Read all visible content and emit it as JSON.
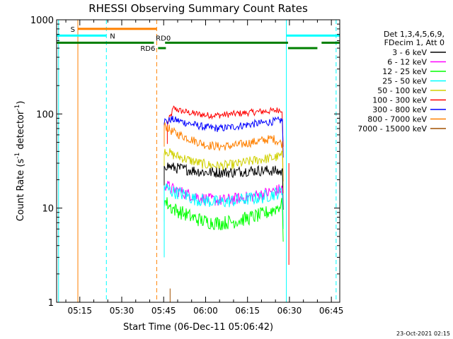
{
  "chart_data": {
    "type": "line",
    "title": "RHESSI Observing Summary Count Rates",
    "xlabel": "Start Time (06-Dec-11 05:06:42)",
    "ylabel_main": "Count Rate (s",
    "ylabel_sup1": "-1",
    "ylabel_mid": " detector",
    "ylabel_sup2": "-1",
    "ylabel_end": ")",
    "y_scale": "log",
    "ylim": [
      1,
      1000
    ],
    "xlim_minutes": [
      306.7,
      408
    ],
    "x_ticks": [
      {
        "label": "05:15",
        "min": 315
      },
      {
        "label": "05:30",
        "min": 330
      },
      {
        "label": "05:45",
        "min": 345
      },
      {
        "label": "06:00",
        "min": 360
      },
      {
        "label": "06:15",
        "min": 375
      },
      {
        "label": "06:30",
        "min": 390
      },
      {
        "label": "06:45",
        "min": 405
      }
    ],
    "y_ticks": [
      {
        "label": "1",
        "value": 1
      },
      {
        "label": "10",
        "value": 10
      },
      {
        "label": "100",
        "value": 100
      },
      {
        "label": "1000",
        "value": 1000
      }
    ],
    "legend": {
      "placement": "right",
      "header": [
        "Det 1,3,4,5,6,9,",
        "FDecim 1, Att 0"
      ],
      "entries": [
        {
          "label": "3 - 6 keV",
          "color": "#000000"
        },
        {
          "label": "6 - 12 keV",
          "color": "#ff00ff"
        },
        {
          "label": "12 - 25 keV",
          "color": "#00ff00"
        },
        {
          "label": "25 - 50 keV",
          "color": "#00ffff"
        },
        {
          "label": "50 - 100 keV",
          "color": "#d0d000"
        },
        {
          "label": "100 - 300 keV",
          "color": "#ff0000"
        },
        {
          "label": "300 - 800 keV",
          "color": "#0000ff"
        },
        {
          "label": "800 - 7000 keV",
          "color": "#ff8000"
        },
        {
          "label": "7000 - 15000 keV",
          "color": "#a05000"
        }
      ]
    },
    "series": [
      {
        "color": "#ff0000",
        "points": [
          [
            346.3,
            80
          ],
          [
            347.5,
            95
          ],
          [
            348.5,
            115
          ],
          [
            351,
            108
          ],
          [
            355,
            102
          ],
          [
            360,
            97
          ],
          [
            365,
            97
          ],
          [
            370,
            100
          ],
          [
            375,
            103
          ],
          [
            380,
            106
          ],
          [
            384,
            108
          ],
          [
            387.5,
            112
          ]
        ]
      },
      {
        "color": "#0000ff",
        "points": [
          [
            345.2,
            85
          ],
          [
            346.3,
            82
          ],
          [
            347.5,
            88
          ],
          [
            350,
            85
          ],
          [
            355,
            78
          ],
          [
            360,
            72
          ],
          [
            365,
            70
          ],
          [
            370,
            73
          ],
          [
            375,
            77
          ],
          [
            380,
            80
          ],
          [
            384,
            83
          ],
          [
            387.5,
            86
          ]
        ]
      },
      {
        "color": "#ff8000",
        "points": [
          [
            345.2,
            75
          ],
          [
            346.3,
            72
          ],
          [
            348,
            65
          ],
          [
            352,
            58
          ],
          [
            356,
            52
          ],
          [
            360,
            47
          ],
          [
            365,
            45
          ],
          [
            370,
            46
          ],
          [
            375,
            49
          ],
          [
            380,
            52
          ],
          [
            384,
            55
          ],
          [
            387.5,
            48
          ]
        ]
      },
      {
        "color": "#d0d000",
        "points": [
          [
            345.2,
            42
          ],
          [
            346.3,
            40
          ],
          [
            348,
            37
          ],
          [
            352,
            34
          ],
          [
            356,
            31
          ],
          [
            360,
            29
          ],
          [
            365,
            28
          ],
          [
            370,
            29
          ],
          [
            375,
            31
          ],
          [
            380,
            33
          ],
          [
            384,
            34
          ],
          [
            387.5,
            36
          ]
        ]
      },
      {
        "color": "#000000",
        "points": [
          [
            345.2,
            29
          ],
          [
            348,
            27
          ],
          [
            352,
            26
          ],
          [
            356,
            25
          ],
          [
            360,
            24
          ],
          [
            365,
            24
          ],
          [
            370,
            24
          ],
          [
            375,
            25
          ],
          [
            380,
            25
          ],
          [
            384,
            25
          ],
          [
            387.5,
            24
          ]
        ]
      },
      {
        "color": "#ff00ff",
        "points": [
          [
            345.2,
            18
          ],
          [
            348,
            16
          ],
          [
            352,
            14.5
          ],
          [
            356,
            13.5
          ],
          [
            360,
            12.5
          ],
          [
            365,
            12
          ],
          [
            370,
            12.5
          ],
          [
            375,
            13
          ],
          [
            380,
            14
          ],
          [
            384,
            15
          ],
          [
            387.5,
            16
          ]
        ]
      },
      {
        "color": "#00ffff",
        "points": [
          [
            345.2,
            17
          ],
          [
            348,
            15
          ],
          [
            352,
            14
          ],
          [
            356,
            12.5
          ],
          [
            360,
            12
          ],
          [
            365,
            11.5
          ],
          [
            370,
            12
          ],
          [
            375,
            12.5
          ],
          [
            380,
            13
          ],
          [
            384,
            14
          ],
          [
            387.5,
            15
          ]
        ]
      },
      {
        "color": "#00ff00",
        "points": [
          [
            345.2,
            12
          ],
          [
            348,
            10
          ],
          [
            352,
            8.8
          ],
          [
            356,
            7.8
          ],
          [
            360,
            7.2
          ],
          [
            365,
            6.9
          ],
          [
            370,
            7.2
          ],
          [
            375,
            7.8
          ],
          [
            380,
            8.5
          ],
          [
            384,
            9.5
          ],
          [
            387.5,
            11
          ]
        ]
      }
    ],
    "state_bars": [
      {
        "label": "S",
        "color": "#ff8000",
        "start": 314.3,
        "end": 342.5,
        "value": 800,
        "label_pos": "left"
      },
      {
        "label": "N",
        "color": "#00ffff",
        "start": 306.7,
        "end": 324.5,
        "value": 680,
        "label_pos": "right"
      },
      {
        "label": "",
        "color": "#00ffff",
        "start": 388.9,
        "end": 408,
        "value": 680,
        "label_pos": "none"
      },
      {
        "label": "RD0",
        "color": "#008000",
        "start": 306.7,
        "end": 341.5,
        "value": 570,
        "label_pos": "none"
      },
      {
        "label": "",
        "color": "#008000",
        "start": 345.5,
        "end": 389.5,
        "value": 570,
        "label_pos": "none"
      },
      {
        "label": "",
        "color": "#008000",
        "start": 401.5,
        "end": 408,
        "value": 570,
        "label_pos": "none"
      },
      {
        "label": "RD6",
        "color": "#008000",
        "start": 343,
        "end": 345.8,
        "value": 500,
        "label_pos": "left"
      },
      {
        "label": "",
        "color": "#008000",
        "start": 389.5,
        "end": 400,
        "value": 500,
        "label_pos": "none"
      }
    ],
    "vertical_markers": [
      {
        "min": 307.4,
        "color": "#00ffff",
        "style": "solid"
      },
      {
        "min": 314.3,
        "color": "#ff8000",
        "style": "solid"
      },
      {
        "min": 324.5,
        "color": "#00ffff",
        "style": "dashed"
      },
      {
        "min": 342.5,
        "color": "#ff8000",
        "style": "dashed"
      },
      {
        "min": 388.9,
        "color": "#00ffff",
        "style": "solid"
      },
      {
        "min": 406.7,
        "color": "#00ffff",
        "style": "dashed"
      }
    ],
    "timestamp": "23-Oct-2021 02:15"
  }
}
